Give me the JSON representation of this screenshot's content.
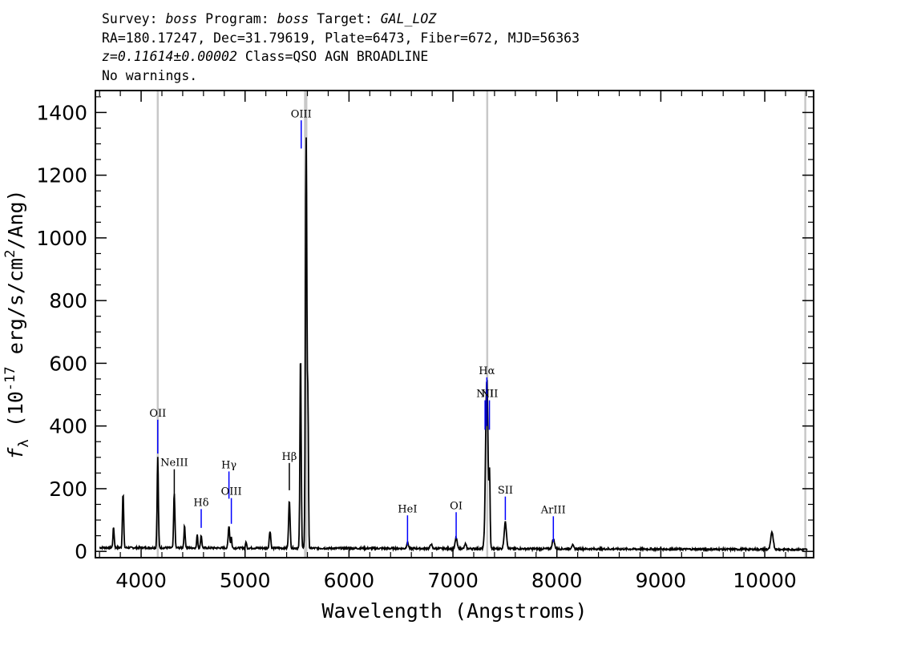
{
  "header": {
    "line1": {
      "survey_label": "Survey: ",
      "survey": "boss",
      "program_label": " Program: ",
      "program": "boss",
      "target_label": " Target: ",
      "target": "GAL_LOZ"
    },
    "line2": "RA=180.17247, Dec=31.79619, Plate=6473, Fiber=672, MJD=56363",
    "line3": {
      "redshift": "z=0.11614±0.00002",
      "class_text": " Class=QSO AGN BROADLINE"
    },
    "line4": "No warnings."
  },
  "chart_data": {
    "type": "line",
    "title": "",
    "xlabel": "Wavelength (Angstroms)",
    "ylabel": "f_λ (10^-17 erg/s/cm^2/Ang)",
    "xlim": [
      3560,
      10470
    ],
    "ylim": [
      -20,
      1470
    ],
    "x_ticks": [
      4000,
      5000,
      6000,
      7000,
      8000,
      9000,
      10000
    ],
    "x_tick_labels": [
      "4000",
      "5000",
      "6000",
      "7000",
      "8000",
      "9000",
      "10000"
    ],
    "y_ticks": [
      0,
      200,
      400,
      600,
      800,
      1000,
      1200,
      1400
    ],
    "y_tick_labels": [
      "0",
      "200",
      "400",
      "600",
      "800",
      "1000",
      "1200",
      "1400"
    ],
    "grid": false,
    "masked_regions_x": [
      4160,
      5577,
      5590,
      7330,
      10390
    ],
    "line_markers": [
      {
        "label": "OII",
        "x": 4160,
        "y_bottom": 312,
        "y_top": 420,
        "color": "#0000ff",
        "label_y": 430
      },
      {
        "label": "NeIII",
        "x": 4319,
        "y_bottom": 178,
        "y_top": 262,
        "color": "#000000",
        "label_y": 272
      },
      {
        "label": "Hδ",
        "x": 4578,
        "y_bottom": 75,
        "y_top": 135,
        "color": "#0000ff",
        "label_y": 145
      },
      {
        "label": "Hγ",
        "x": 4845,
        "y_bottom": 168,
        "y_top": 255,
        "color": "#0000ff",
        "label_y": 265
      },
      {
        "label": "OIII",
        "x": 4868,
        "y_bottom": 88,
        "y_top": 170,
        "color": "#0000ff",
        "label_y": 180
      },
      {
        "label": "Hβ",
        "x": 5426,
        "y_bottom": 195,
        "y_top": 282,
        "color": "#000000",
        "label_y": 292
      },
      {
        "label": "OIII",
        "x": 5540,
        "y_bottom": 1285,
        "y_top": 1375,
        "color": "#0000ff",
        "label_y": 1385
      },
      {
        "label": "HeI",
        "x": 6563,
        "y_bottom": 20,
        "y_top": 115,
        "color": "#0000ff",
        "label_y": 125
      },
      {
        "label": "OI",
        "x": 7031,
        "y_bottom": 40,
        "y_top": 125,
        "color": "#0000ff",
        "label_y": 135
      },
      {
        "label": "NII",
        "x": 7309,
        "y_bottom": 388,
        "y_top": 482,
        "color": "#0000ff",
        "label_y": 492
      },
      {
        "label": "Hα",
        "x": 7326,
        "y_bottom": 400,
        "y_top": 555,
        "color": "#0000ff",
        "label_y": 565
      },
      {
        "label": "NII",
        "x": 7351,
        "y_bottom": 388,
        "y_top": 482,
        "color": "#0000ff",
        "label_y": 492
      },
      {
        "label": "SII",
        "x": 7504,
        "y_bottom": 100,
        "y_top": 175,
        "color": "#0000ff",
        "label_y": 185
      },
      {
        "label": "ArIII",
        "x": 7966,
        "y_bottom": 30,
        "y_top": 112,
        "color": "#0000ff",
        "label_y": 122
      }
    ],
    "series": [
      {
        "color": "#000000",
        "baseline": 12,
        "baseline_end": 6,
        "peaks": [
          {
            "x": 3735,
            "y": 65,
            "w": 6
          },
          {
            "x": 3826,
            "y": 175,
            "w": 6
          },
          {
            "x": 4160,
            "y": 290,
            "w": 6
          },
          {
            "x": 4319,
            "y": 175,
            "w": 6
          },
          {
            "x": 4418,
            "y": 70,
            "w": 6
          },
          {
            "x": 4540,
            "y": 45,
            "w": 5
          },
          {
            "x": 4578,
            "y": 40,
            "w": 6
          },
          {
            "x": 4845,
            "y": 72,
            "w": 7
          },
          {
            "x": 4868,
            "y": 35,
            "w": 5
          },
          {
            "x": 5010,
            "y": 20,
            "w": 5
          },
          {
            "x": 5240,
            "y": 55,
            "w": 7
          },
          {
            "x": 5426,
            "y": 155,
            "w": 7
          },
          {
            "x": 5534,
            "y": 620,
            "w": 6
          },
          {
            "x": 5588,
            "y": 1310,
            "w": 7
          },
          {
            "x": 5605,
            "y": 440,
            "w": 5
          },
          {
            "x": 6563,
            "y": 20,
            "w": 8
          },
          {
            "x": 6790,
            "y": 15,
            "w": 8
          },
          {
            "x": 7031,
            "y": 35,
            "w": 9
          },
          {
            "x": 7120,
            "y": 15,
            "w": 8
          },
          {
            "x": 7326,
            "y": 540,
            "w": 12
          },
          {
            "x": 7353,
            "y": 210,
            "w": 5
          },
          {
            "x": 7504,
            "y": 85,
            "w": 11
          },
          {
            "x": 7966,
            "y": 30,
            "w": 11
          },
          {
            "x": 8150,
            "y": 12,
            "w": 10
          },
          {
            "x": 10070,
            "y": 55,
            "w": 12
          }
        ]
      }
    ]
  }
}
